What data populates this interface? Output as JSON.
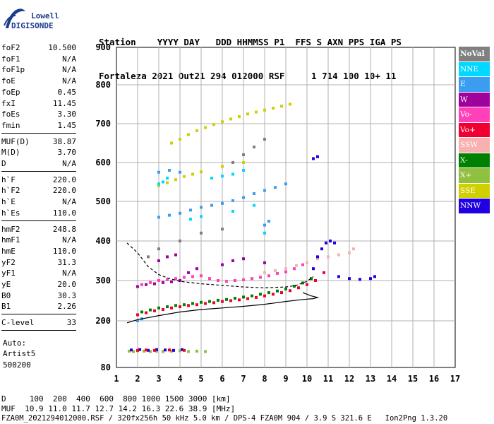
{
  "logo": {
    "line1": "Lowell",
    "line2": "DIGISONDE"
  },
  "header": {
    "line1": "Station    YYYY DAY   DDD HHMMSS P1  FFS S AXN PPS IGA PS",
    "line2": "Fortaleza 2021 Out21 294 012000 RSF     1 714 100 10+ 11"
  },
  "params_group1": [
    {
      "k": "foF2",
      "v": "10.500"
    },
    {
      "k": "foF1",
      "v": "N/A"
    },
    {
      "k": "foF1p",
      "v": "N/A"
    },
    {
      "k": "foE",
      "v": "N/A"
    },
    {
      "k": "foEp",
      "v": "0.45"
    },
    {
      "k": "fxI",
      "v": "11.45"
    },
    {
      "k": "foEs",
      "v": "3.30"
    },
    {
      "k": "fmin",
      "v": "1.45"
    }
  ],
  "params_group2": [
    {
      "k": "MUF(D)",
      "v": "38.87"
    },
    {
      "k": "M(D)",
      "v": "3.70"
    },
    {
      "k": "D",
      "v": "N/A"
    }
  ],
  "params_group3": [
    {
      "k": "h`F",
      "v": "220.0"
    },
    {
      "k": "h`F2",
      "v": "220.0"
    },
    {
      "k": "h`E",
      "v": "N/A"
    },
    {
      "k": "h`Es",
      "v": "110.0"
    }
  ],
  "params_group4": [
    {
      "k": "hmF2",
      "v": "248.8"
    },
    {
      "k": "hmF1",
      "v": "N/A"
    },
    {
      "k": "hmE",
      "v": "110.0"
    },
    {
      "k": "yF2",
      "v": "31.3"
    },
    {
      "k": "yF1",
      "v": "N/A"
    },
    {
      "k": "yE",
      "v": "20.0"
    },
    {
      "k": "B0",
      "v": "30.3"
    },
    {
      "k": "B1",
      "v": "2.26"
    }
  ],
  "params_group5": [
    {
      "k": "C-level",
      "v": "33"
    }
  ],
  "auto": {
    "line1": "Auto:",
    "line2": "Artist5",
    "line3": "500200"
  },
  "legend": [
    {
      "label": "NoVal",
      "color": "#808080"
    },
    {
      "label": "NNE",
      "color": "#00d8ff"
    },
    {
      "label": "E",
      "color": "#3c9cf0"
    },
    {
      "label": "W",
      "color": "#a0009c"
    },
    {
      "label": "Vo-",
      "color": "#ff40b8"
    },
    {
      "label": "Vo+",
      "color": "#f00030"
    },
    {
      "label": "SSW",
      "color": "#f8b0b0"
    },
    {
      "label": "X-",
      "color": "#008000"
    },
    {
      "label": "X+",
      "color": "#90c040"
    },
    {
      "label": "SSE",
      "color": "#d0d000"
    },
    {
      "label": "NNW",
      "color": "#2000e0"
    }
  ],
  "bottom": {
    "dline": "D     100  200  400  600  800 1000 1500 3000 [km]",
    "mline": "MUF  10.9 11.0 11.7 12.7 14.2 16.3 22.6 38.9 [MHz]",
    "footer": "FZA0M_2021294012000.RSF / 320fx256h 50 kHz 5.0 km / DPS-4 FZA0M 904 / 3.9 S 321.6 E   Ion2Png 1.3.20"
  },
  "chart_data": {
    "type": "scatter",
    "xlim": [
      1,
      17
    ],
    "ylim": [
      80,
      900
    ],
    "xticks": [
      1,
      2,
      3,
      4,
      5,
      6,
      7,
      8,
      9,
      10,
      11,
      12,
      13,
      14,
      15,
      16,
      17
    ],
    "yticks": [
      80,
      200,
      300,
      400,
      500,
      600,
      700,
      800,
      900
    ],
    "grid": true,
    "xlabel": "",
    "ylabel": "",
    "series": [
      {
        "color": "#90c040",
        "points": [
          [
            1.6,
            122
          ],
          [
            1.8,
            121
          ],
          [
            2.0,
            123
          ],
          [
            2.3,
            122
          ],
          [
            2.6,
            121
          ],
          [
            2.9,
            122
          ],
          [
            3.2,
            121
          ],
          [
            3.6,
            122
          ],
          [
            4.0,
            123
          ],
          [
            4.4,
            121
          ],
          [
            4.8,
            122
          ],
          [
            5.2,
            121
          ]
        ]
      },
      {
        "color": "#2000e0",
        "points": [
          [
            1.7,
            125
          ],
          [
            2.1,
            126
          ],
          [
            2.5,
            124
          ],
          [
            2.9,
            126
          ],
          [
            3.3,
            125
          ],
          [
            3.7,
            124
          ],
          [
            4.1,
            126
          ]
        ]
      },
      {
        "color": "#f00030",
        "points": [
          [
            2.0,
            124
          ],
          [
            2.4,
            125
          ],
          [
            2.8,
            124
          ],
          [
            3.5,
            125
          ],
          [
            4.2,
            124
          ]
        ]
      },
      {
        "color": "#f00030",
        "points": [
          [
            2.0,
            215
          ],
          [
            2.4,
            220
          ],
          [
            2.8,
            225
          ],
          [
            3.2,
            228
          ],
          [
            3.6,
            232
          ],
          [
            4.0,
            235
          ],
          [
            4.4,
            238
          ],
          [
            4.8,
            240
          ],
          [
            5.2,
            243
          ],
          [
            5.6,
            245
          ],
          [
            6.0,
            248
          ],
          [
            6.4,
            250
          ],
          [
            6.8,
            252
          ],
          [
            7.2,
            255
          ],
          [
            7.6,
            258
          ],
          [
            8.0,
            262
          ],
          [
            8.4,
            266
          ],
          [
            8.8,
            270
          ],
          [
            9.2,
            275
          ],
          [
            9.6,
            282
          ],
          [
            10.0,
            290
          ],
          [
            10.4,
            300
          ],
          [
            10.8,
            320
          ]
        ]
      },
      {
        "color": "#008000",
        "points": [
          [
            2.2,
            222
          ],
          [
            2.6,
            227
          ],
          [
            3.0,
            232
          ],
          [
            3.4,
            235
          ],
          [
            3.8,
            238
          ],
          [
            4.2,
            240
          ],
          [
            4.6,
            243
          ],
          [
            5.0,
            246
          ],
          [
            5.4,
            248
          ],
          [
            5.8,
            251
          ],
          [
            6.2,
            253
          ],
          [
            6.6,
            256
          ],
          [
            7.0,
            259
          ],
          [
            7.4,
            262
          ],
          [
            7.8,
            266
          ],
          [
            8.2,
            270
          ],
          [
            8.6,
            274
          ],
          [
            9.0,
            279
          ],
          [
            9.4,
            286
          ],
          [
            9.8,
            294
          ],
          [
            10.2,
            305
          ]
        ]
      },
      {
        "color": "#ff40b8",
        "points": [
          [
            2.2,
            290
          ],
          [
            2.6,
            295
          ],
          [
            3.0,
            300
          ],
          [
            3.4,
            302
          ],
          [
            3.8,
            305
          ],
          [
            4.2,
            308
          ],
          [
            4.6,
            310
          ],
          [
            5.0,
            312
          ],
          [
            5.4,
            305
          ],
          [
            5.8,
            300
          ],
          [
            6.2,
            298
          ],
          [
            6.6,
            300
          ],
          [
            7.0,
            302
          ],
          [
            7.4,
            305
          ],
          [
            7.8,
            308
          ],
          [
            8.2,
            312
          ],
          [
            8.6,
            318
          ],
          [
            9.0,
            322
          ],
          [
            9.4,
            330
          ],
          [
            9.8,
            340
          ]
        ]
      },
      {
        "color": "#a0009c",
        "points": [
          [
            2.0,
            285
          ],
          [
            2.4,
            290
          ],
          [
            2.8,
            292
          ],
          [
            3.2,
            295
          ],
          [
            3.6,
            297
          ],
          [
            4.0,
            300
          ],
          [
            4.4,
            320
          ],
          [
            4.8,
            330
          ],
          [
            3.0,
            350
          ],
          [
            3.4,
            360
          ],
          [
            3.8,
            365
          ],
          [
            6.0,
            340
          ],
          [
            6.5,
            350
          ],
          [
            7.0,
            355
          ],
          [
            8.0,
            345
          ]
        ]
      },
      {
        "color": "#f8b0b0",
        "points": [
          [
            8.0,
            320
          ],
          [
            8.5,
            325
          ],
          [
            9.0,
            330
          ],
          [
            9.5,
            338
          ],
          [
            10.0,
            345
          ],
          [
            10.5,
            355
          ],
          [
            11.0,
            360
          ],
          [
            11.5,
            365
          ],
          [
            12.0,
            370
          ],
          [
            12.2,
            380
          ]
        ]
      },
      {
        "color": "#2000e0",
        "points": [
          [
            10.3,
            330
          ],
          [
            10.5,
            360
          ],
          [
            10.7,
            380
          ],
          [
            10.9,
            395
          ],
          [
            11.1,
            400
          ],
          [
            11.3,
            395
          ],
          [
            11.5,
            310
          ],
          [
            12.0,
            305
          ],
          [
            12.5,
            303
          ],
          [
            13.0,
            305
          ],
          [
            13.2,
            310
          ],
          [
            10.3,
            610
          ],
          [
            10.5,
            615
          ]
        ]
      },
      {
        "color": "#3c9cf0",
        "points": [
          [
            3.0,
            460
          ],
          [
            3.5,
            465
          ],
          [
            4.0,
            470
          ],
          [
            4.5,
            478
          ],
          [
            5.0,
            485
          ],
          [
            5.5,
            490
          ],
          [
            6.0,
            495
          ],
          [
            6.5,
            502
          ],
          [
            7.0,
            510
          ],
          [
            7.5,
            520
          ],
          [
            8.0,
            528
          ],
          [
            8.5,
            536
          ],
          [
            9.0,
            545
          ],
          [
            3.0,
            575
          ],
          [
            3.5,
            580
          ],
          [
            4.0,
            575
          ],
          [
            2.0,
            200
          ],
          [
            2.2,
            205
          ],
          [
            8.0,
            440
          ],
          [
            8.2,
            450
          ]
        ]
      },
      {
        "color": "#d0d000",
        "points": [
          [
            3.6,
            650
          ],
          [
            4.0,
            660
          ],
          [
            4.4,
            672
          ],
          [
            4.8,
            682
          ],
          [
            5.2,
            690
          ],
          [
            5.6,
            698
          ],
          [
            6.0,
            705
          ],
          [
            6.4,
            712
          ],
          [
            6.8,
            718
          ],
          [
            7.2,
            725
          ],
          [
            7.6,
            730
          ],
          [
            8.0,
            735
          ],
          [
            8.4,
            740
          ],
          [
            8.8,
            745
          ],
          [
            9.2,
            750
          ],
          [
            3.0,
            540
          ],
          [
            3.4,
            548
          ],
          [
            3.8,
            556
          ],
          [
            4.2,
            564
          ],
          [
            4.6,
            570
          ],
          [
            5.0,
            576
          ],
          [
            6.0,
            590
          ],
          [
            7.0,
            600
          ]
        ]
      },
      {
        "color": "#00d8ff",
        "points": [
          [
            3.0,
            545
          ],
          [
            3.2,
            550
          ],
          [
            3.4,
            560
          ],
          [
            5.5,
            560
          ],
          [
            6.0,
            565
          ],
          [
            6.5,
            570
          ],
          [
            7.0,
            580
          ],
          [
            4.5,
            455
          ],
          [
            5.0,
            462
          ],
          [
            6.5,
            475
          ],
          [
            7.5,
            490
          ],
          [
            8.0,
            420
          ]
        ]
      },
      {
        "color": "#808080",
        "points": [
          [
            2.5,
            360
          ],
          [
            3.0,
            380
          ],
          [
            4.0,
            400
          ],
          [
            5.0,
            420
          ],
          [
            6.0,
            430
          ],
          [
            6.5,
            600
          ],
          [
            7.0,
            620
          ],
          [
            7.5,
            640
          ],
          [
            8.0,
            660
          ]
        ]
      }
    ],
    "profile_curve": [
      [
        1.5,
        195
      ],
      [
        2.0,
        203
      ],
      [
        3.0,
        213
      ],
      [
        4.0,
        222
      ],
      [
        5.0,
        228
      ],
      [
        6.0,
        232
      ],
      [
        7.0,
        236
      ],
      [
        8.0,
        241
      ],
      [
        9.0,
        248
      ],
      [
        9.8,
        253
      ],
      [
        10.3,
        255
      ],
      [
        10.5,
        258
      ],
      [
        10.2,
        262
      ],
      [
        9.8,
        270
      ]
    ],
    "virtual_curve": [
      [
        1.5,
        395
      ],
      [
        2.0,
        370
      ],
      [
        2.5,
        335
      ],
      [
        3.0,
        315
      ],
      [
        3.5,
        305
      ],
      [
        4.0,
        298
      ],
      [
        5.0,
        292
      ],
      [
        6.0,
        288
      ],
      [
        7.0,
        284
      ],
      [
        8.0,
        282
      ],
      [
        9.0,
        284
      ],
      [
        9.5,
        288
      ],
      [
        10.0,
        298
      ],
      [
        10.3,
        310
      ]
    ]
  }
}
